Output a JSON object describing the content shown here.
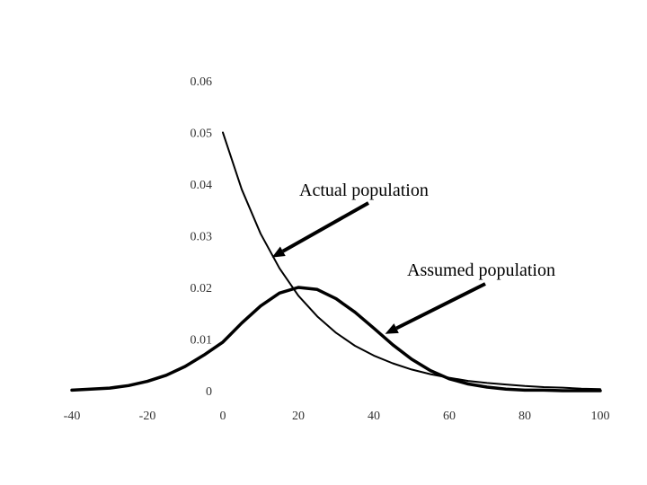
{
  "chart_data": {
    "type": "line",
    "title": "",
    "xlabel": "",
    "ylabel": "",
    "xlim": [
      -40,
      100
    ],
    "ylim": [
      0,
      0.06
    ],
    "x_ticks": [
      "-40",
      "-20",
      "0",
      "20",
      "40",
      "60",
      "80",
      "100"
    ],
    "y_ticks": [
      "0",
      "0.01",
      "0.02",
      "0.03",
      "0.04",
      "0.05",
      "0.06"
    ],
    "grid": false,
    "legend": "none",
    "series": [
      {
        "name": "Actual population",
        "color": "#000000",
        "x": [
          0,
          5,
          10,
          15,
          20,
          25,
          30,
          35,
          40,
          45,
          50,
          55,
          60,
          65,
          70,
          75,
          80,
          85,
          90,
          95,
          100
        ],
        "y": [
          0.05,
          0.039,
          0.0304,
          0.0237,
          0.0184,
          0.0144,
          0.0112,
          0.0087,
          0.0068,
          0.0053,
          0.0041,
          0.0032,
          0.0025,
          0.0019,
          0.0015,
          0.0012,
          0.0009,
          0.0007,
          0.0006,
          0.0004,
          0.0003
        ]
      },
      {
        "name": "Assumed population",
        "color": "#000000",
        "x": [
          -40,
          -35,
          -30,
          -25,
          -20,
          -15,
          -10,
          -5,
          0,
          5,
          10,
          15,
          20,
          25,
          30,
          35,
          40,
          45,
          50,
          55,
          60,
          65,
          70,
          75,
          80,
          85,
          90,
          95,
          100
        ],
        "y": [
          0.0001,
          0.0003,
          0.0005,
          0.001,
          0.0018,
          0.003,
          0.0047,
          0.0069,
          0.0094,
          0.0131,
          0.0164,
          0.0189,
          0.02,
          0.0196,
          0.0178,
          0.0152,
          0.0121,
          0.0089,
          0.0061,
          0.0039,
          0.0023,
          0.0013,
          0.0007,
          0.0003,
          0.0001,
          0.0001,
          0.0,
          0.0,
          0.0
        ]
      }
    ],
    "annotations": [
      {
        "text": "Actual population",
        "points_to_series": "Actual population",
        "target": [
          13,
          0.0258
        ]
      },
      {
        "text": "Assumed population",
        "points_to_series": "Assumed population",
        "target": [
          43,
          0.011
        ]
      }
    ]
  }
}
